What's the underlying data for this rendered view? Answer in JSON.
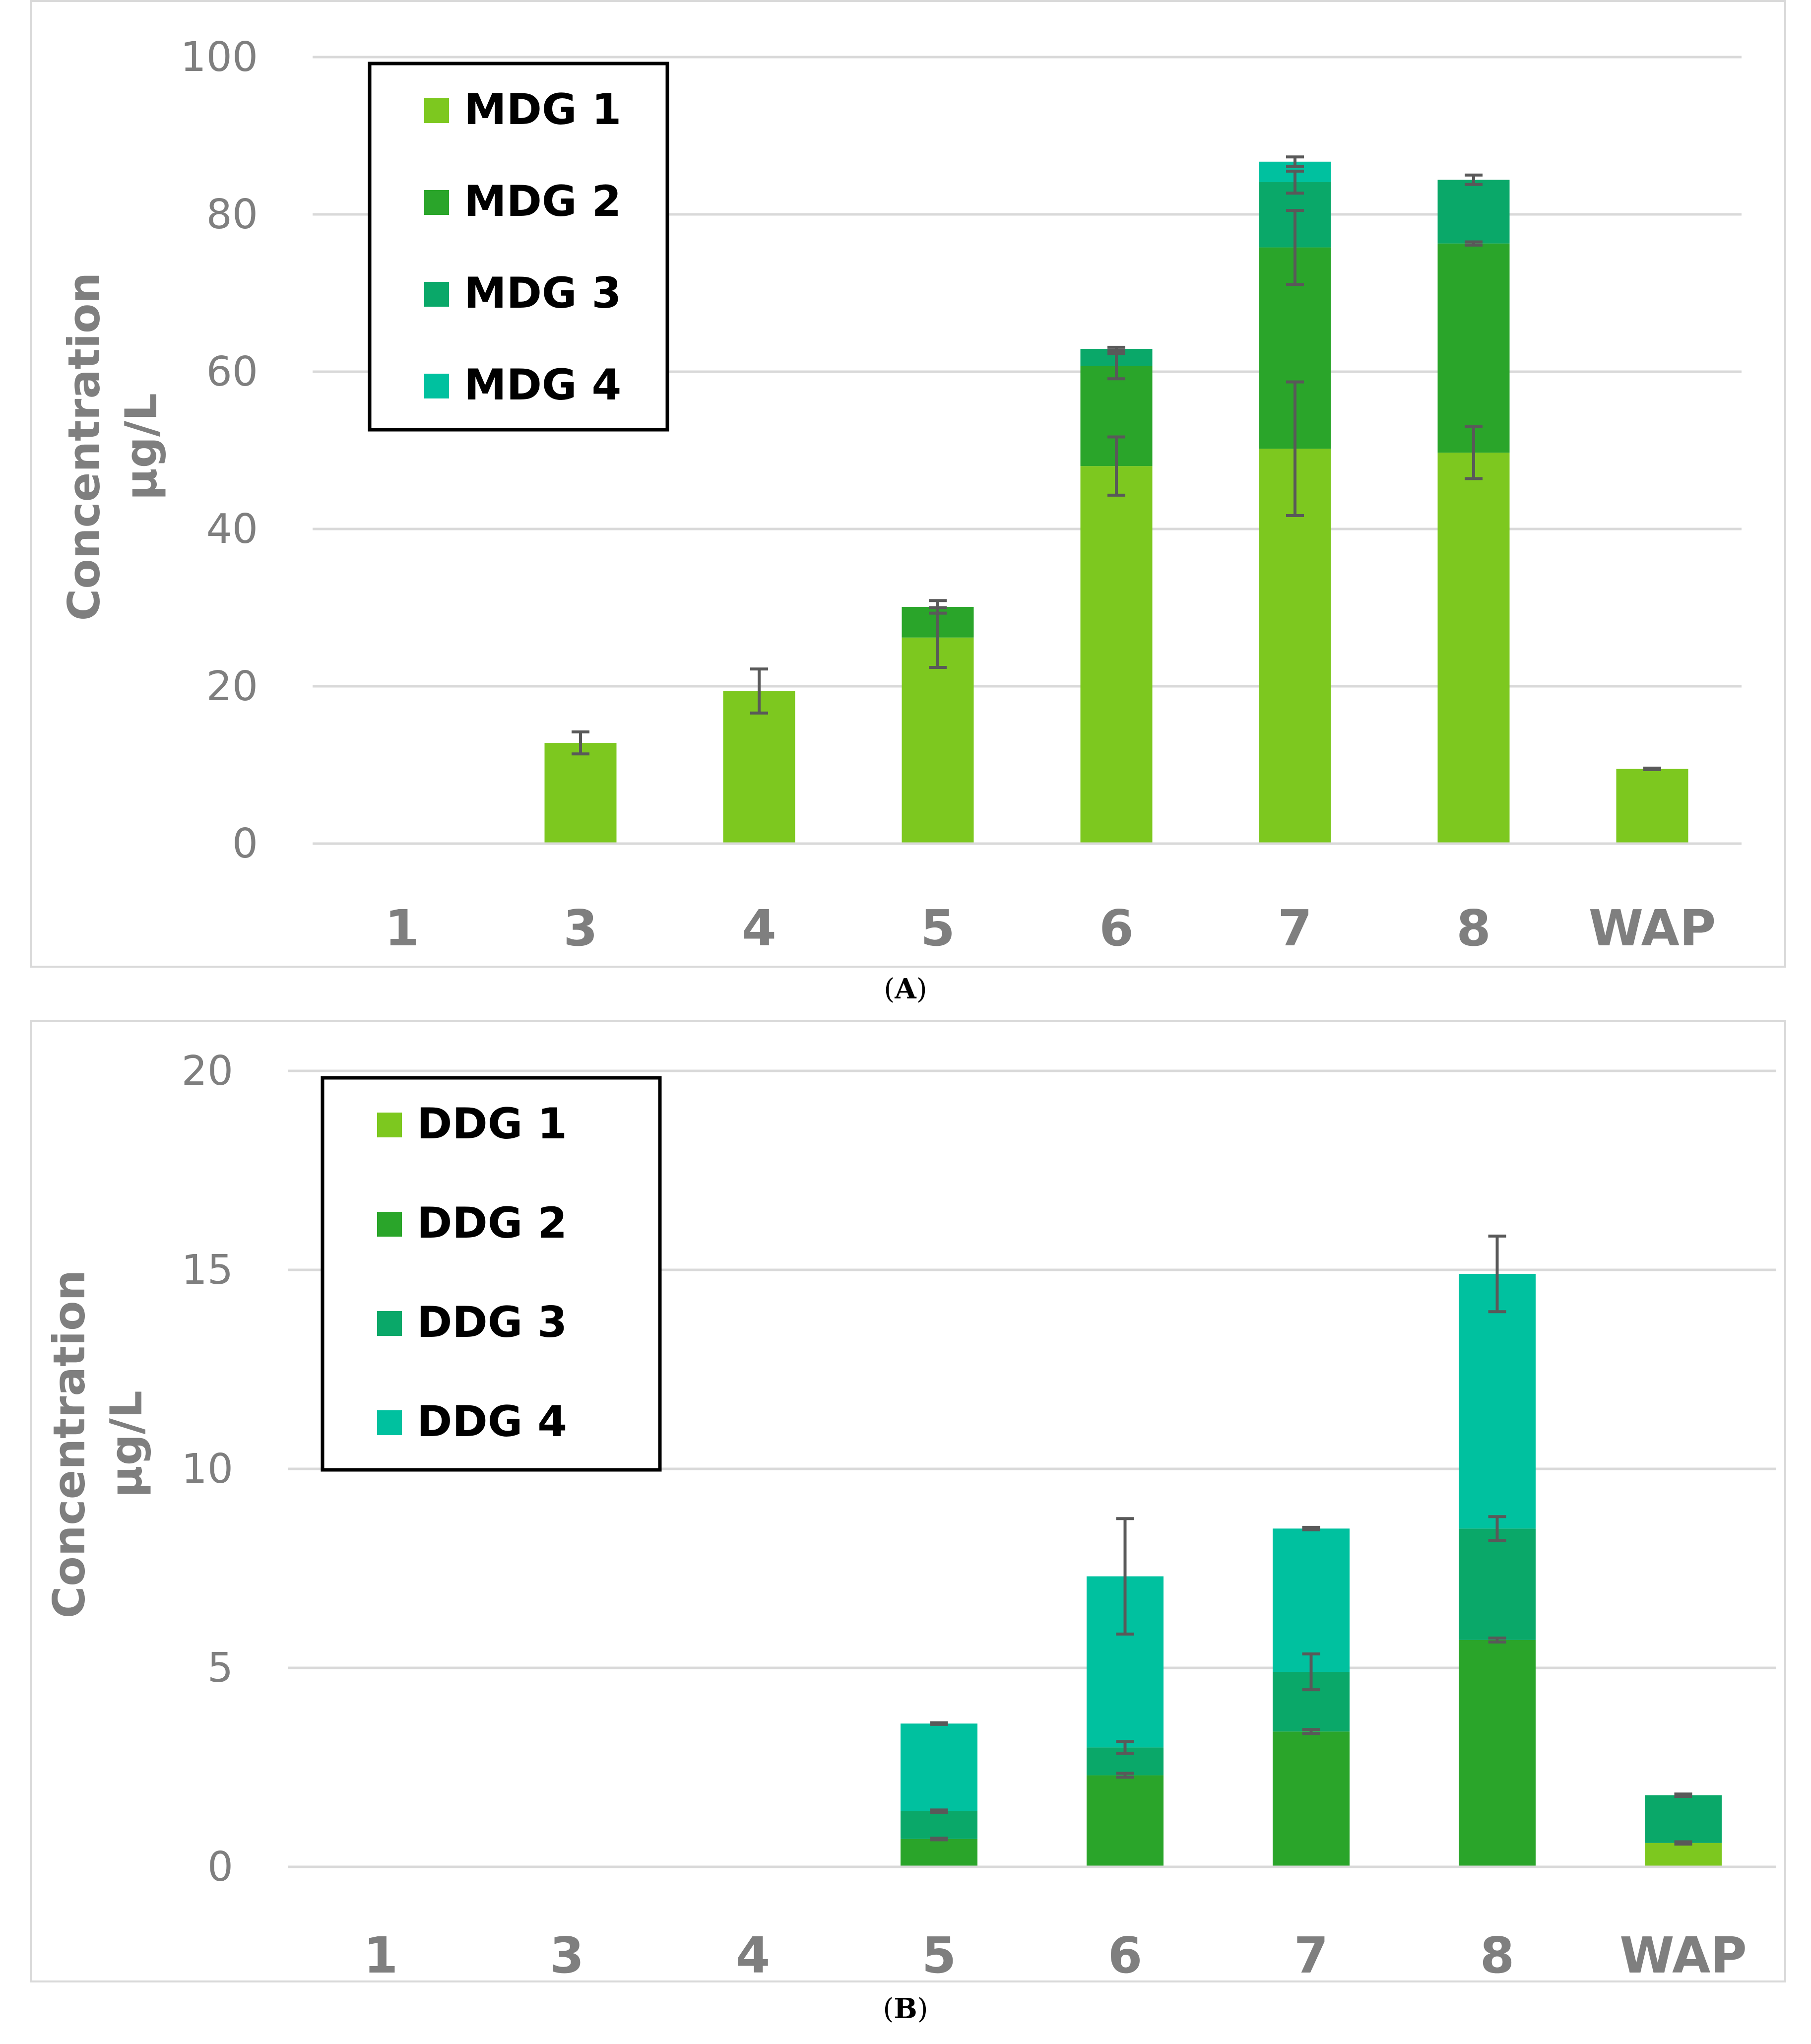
{
  "chart_data": [
    {
      "type": "bar",
      "stacked": true,
      "panel_label": "A",
      "title": "",
      "xlabel": "",
      "ylabel": [
        "Concentration",
        "μg/L"
      ],
      "ylim": [
        0,
        100
      ],
      "yticks": [
        0,
        20,
        40,
        60,
        80,
        100
      ],
      "grid": true,
      "legend_position": "top-left",
      "categories": [
        "1",
        "3",
        "4",
        "5",
        "6",
        "7",
        "8",
        "WAP"
      ],
      "series": [
        {
          "name": "MDG 1",
          "color": "#7dc81f",
          "values": [
            0,
            12.8,
            19.4,
            26.2,
            48.0,
            50.2,
            49.7,
            9.5
          ],
          "error": [
            0,
            1.4,
            2.8,
            3.8,
            3.7,
            8.5,
            3.3,
            0.1
          ]
        },
        {
          "name": "MDG 2",
          "color": "#2aa52a",
          "values": [
            0,
            0,
            0,
            3.9,
            12.7,
            25.6,
            26.6,
            0
          ],
          "error": [
            0,
            0,
            0,
            0.8,
            1.6,
            4.7,
            0.2,
            0
          ]
        },
        {
          "name": "MDG 3",
          "color": "#0aa869",
          "values": [
            0,
            0,
            0,
            0,
            2.2,
            8.3,
            8.1,
            0
          ],
          "error": [
            0,
            0,
            0,
            0,
            0.2,
            1.4,
            0.6,
            0
          ]
        },
        {
          "name": "MDG 4",
          "color": "#00c19f",
          "values": [
            0,
            0,
            0,
            0,
            0,
            2.6,
            0,
            0
          ],
          "error": [
            0,
            0,
            0,
            0,
            0,
            0.6,
            0,
            0
          ]
        }
      ]
    },
    {
      "type": "bar",
      "stacked": true,
      "panel_label": "B",
      "title": "",
      "xlabel": "",
      "ylabel": [
        "Concentration",
        "μg/L"
      ],
      "ylim": [
        0,
        20
      ],
      "yticks": [
        0,
        5,
        10,
        15,
        20
      ],
      "grid": true,
      "legend_position": "top-left",
      "categories": [
        "1",
        "3",
        "4",
        "5",
        "6",
        "7",
        "8",
        "WAP"
      ],
      "series": [
        {
          "name": "DDG 1",
          "color": "#7dc81f",
          "values": [
            0,
            0,
            0,
            0,
            0,
            0,
            0,
            0.6
          ],
          "error": [
            0,
            0,
            0,
            0,
            0,
            0,
            0,
            0.03
          ]
        },
        {
          "name": "DDG 2",
          "color": "#2aa52a",
          "values": [
            0,
            0,
            0,
            0.7,
            2.3,
            3.4,
            5.7,
            0
          ],
          "error": [
            0,
            0,
            0,
            0.02,
            0.05,
            0.05,
            0.05,
            0
          ]
        },
        {
          "name": "DDG 3",
          "color": "#0aa869",
          "values": [
            0,
            0,
            0,
            0.7,
            0.7,
            1.5,
            2.8,
            1.2
          ],
          "error": [
            0,
            0,
            0,
            0.03,
            0.15,
            0.45,
            0.3,
            0.03
          ]
        },
        {
          "name": "DDG 4",
          "color": "#00c19f",
          "values": [
            0,
            0,
            0,
            2.2,
            4.3,
            3.6,
            6.4,
            0
          ],
          "error": [
            0,
            0,
            0,
            0.02,
            1.45,
            0.03,
            0.95,
            0
          ]
        }
      ]
    }
  ],
  "captions": {
    "a": {
      "open": "(",
      "label": "A",
      "close": ")"
    },
    "b": {
      "open": "(",
      "label": "B",
      "close": ")"
    }
  }
}
